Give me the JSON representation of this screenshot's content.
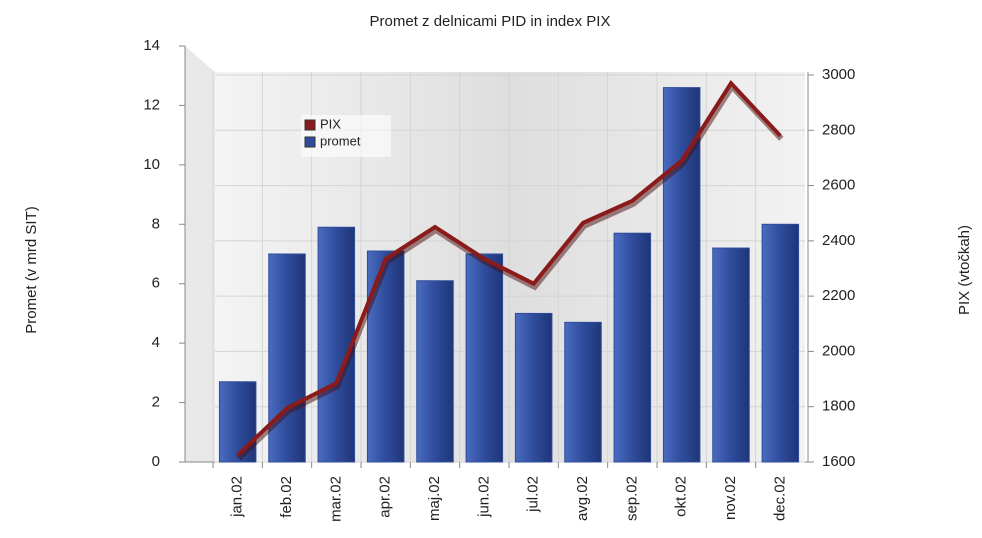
{
  "chart_data": {
    "type": "bar-line",
    "title": "Promet z delnicami PID in index PIX",
    "y_label": "Promet (v mrd SIT)",
    "y2_label": "PIX (vtočkah)",
    "categories": [
      "jan.02",
      "feb.02",
      "mar.02",
      "apr.02",
      "maj.02",
      "jun.02",
      "jul.02",
      "avg.02",
      "sep.02",
      "okt.02",
      "nov.02",
      "dec.02"
    ],
    "series": [
      {
        "name": "PIX",
        "color": "#8b1a1a",
        "axis": "y2",
        "values": [
          1625,
          1795,
          1885,
          2335,
          2450,
          2335,
          2245,
          2465,
          2545,
          2690,
          2970,
          2780
        ]
      },
      {
        "name": "promet",
        "color": "#2f4c9c",
        "values": [
          2.7,
          7.0,
          7.9,
          7.1,
          6.1,
          7.0,
          5.0,
          4.7,
          7.7,
          12.6,
          7.2,
          8.0
        ]
      }
    ],
    "ylim": [
      0,
      14
    ],
    "yticks": [
      0,
      2,
      4,
      6,
      8,
      10,
      12,
      14
    ],
    "y2lim": [
      1600,
      3000
    ],
    "y2ticks": [
      1600,
      1800,
      2000,
      2200,
      2400,
      2600,
      2800,
      3000
    ],
    "grid": true,
    "legend": "upper left"
  }
}
